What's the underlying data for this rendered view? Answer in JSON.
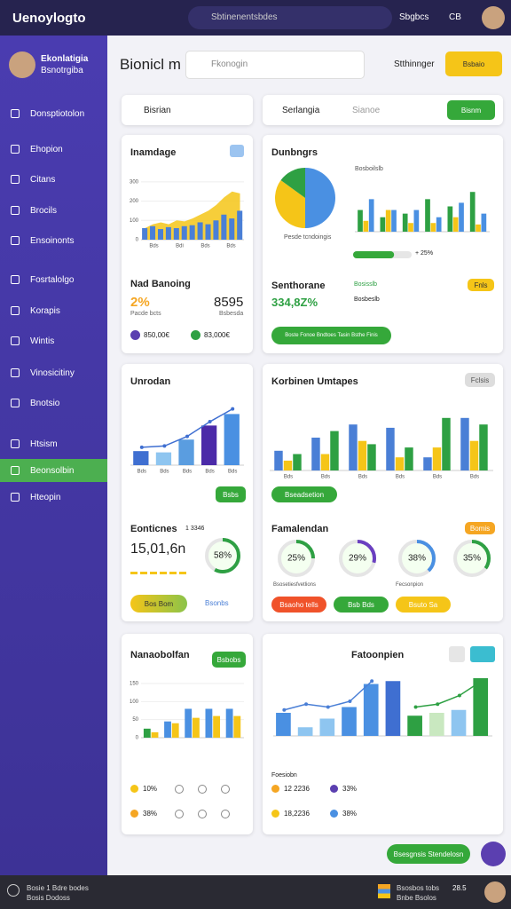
{
  "topbar": {
    "logo": "Uenoylogto",
    "search": "Sbtinenentsbdes",
    "user": "Sbgbcs",
    "code": "CB"
  },
  "sidebar": {
    "name": "Ekonlatigia",
    "role": "Bsnotrgiba",
    "menu": [
      "Donsptiotolon",
      "Ehopion",
      "Citans",
      "Brocils",
      "Ensoinonts",
      "Fosrtalolgo",
      "Korapis",
      "Wintis",
      "Vinosicitiny",
      "Bnotsio",
      "Htsism",
      "Beonsolbin",
      "Hteopin"
    ],
    "active": 11
  },
  "header": {
    "title": "Bionicl m",
    "search": "Fkonogin",
    "label": "Stthinnger",
    "button": "Bsbaio"
  },
  "filters": {
    "left": "Bisrian",
    "middle": "Serlangia",
    "placeholder": "Sianoe",
    "button": "Bisnm"
  },
  "cards": [
    {
      "title": "Inamdage",
      "chart": {
        "ylim": [
          0,
          350
        ],
        "yticks": [
          0,
          100,
          200,
          300
        ],
        "labels": [
          "Bds",
          "Bdi",
          "Bds",
          "Bds"
        ],
        "area": {
          "color": "#f5c518",
          "values": [
            60,
            80,
            90,
            80,
            100,
            95,
            110,
            130,
            150,
            180,
            220,
            250,
            240
          ]
        },
        "series": [
          {
            "color": "#4a7fd6",
            "values": [
              60,
              70,
              55,
              65,
              60,
              70,
              75,
              90,
              80,
              100,
              130,
              110,
              150
            ]
          }
        ]
      },
      "stat_title": "Nad Banoing",
      "stat_a": "2%",
      "stat_b": "8595",
      "sub_a": "Pacde bcts",
      "sub_b": "Bsbesda",
      "legend": [
        {
          "color": "#5b3fb0",
          "text": "850,00€"
        },
        {
          "color": "#2ea043",
          "text": "83,000€"
        }
      ]
    },
    {
      "title": "Dunbngrs",
      "pie": {
        "values": [
          50,
          35,
          15
        ],
        "colors": [
          "#4a90e2",
          "#f5c518",
          "#2ea043"
        ],
        "caption": "Pesde tcndoingis"
      },
      "chart": {
        "ylim": [
          0,
          70
        ],
        "legend_title": "Bosboilslb",
        "series": [
          {
            "color": "#2ea043",
            "values": [
              30,
              20,
              25,
              45,
              35,
              55
            ]
          },
          {
            "color": "#f5c518",
            "values": [
              15,
              30,
              12,
              12,
              20,
              10
            ]
          },
          {
            "color": "#4a90e2",
            "values": [
              45,
              30,
              30,
              20,
              40,
              25
            ]
          }
        ]
      },
      "progress": 70,
      "progress_label": "+ 25%",
      "stat_title": "Senthorane",
      "stat_big": "334,8Z%",
      "badge1": "Bosisslb",
      "badge2": "Bosbeslb",
      "tag": "Fnls",
      "button": "Boste Fonoe Bndtoes Tasin Bsthe Finis"
    },
    {
      "title": "Unrodan",
      "chart": {
        "ylim": [
          0,
          100
        ],
        "labels": [
          "Bds",
          "Bds",
          "Bds",
          "Bds",
          "Bds"
        ],
        "series": [
          {
            "colors": [
              "#3f6fd1",
              "#8ec5f0",
              "#5a9de0",
              "#4b2aa8",
              "#4a90e2"
            ],
            "values": [
              22,
              20,
              40,
              62,
              80
            ]
          }
        ],
        "lines": [
          {
            "color": "#3f6fd1",
            "values": [
              28,
              30,
              45,
              68,
              88
            ]
          }
        ]
      },
      "button": "Bsbs",
      "stat_title": "Eonticnes",
      "stat_sub": "1 3346",
      "stat_big": "15,01,6n",
      "donut": {
        "value": 58,
        "label": "58%",
        "color": "#2ea043"
      },
      "pill": "Bos Bom",
      "link": "Bsonbs"
    },
    {
      "title": "Korbinen Umtapes",
      "tag": "Fclsis",
      "chart": {
        "ylim": [
          0,
          100
        ],
        "labels": [
          "Bds",
          "Bds",
          "Bds",
          "Bds",
          "Bds",
          "Bds"
        ],
        "series": [
          {
            "color": "#4a7fd6",
            "values": [
              30,
              50,
              70,
              65,
              20,
              80
            ]
          },
          {
            "color": "#f5c518",
            "values": [
              15,
              25,
              45,
              20,
              35,
              45
            ]
          },
          {
            "color": "#2ea043",
            "values": [
              25,
              60,
              40,
              35,
              80,
              70
            ]
          }
        ]
      },
      "button": "Bseadsetion",
      "sec_title": "Famalendan",
      "sec_tag": "Bomis",
      "gauges": {
        "values": [
          25,
          29,
          38,
          35
        ],
        "value_labels": [
          "25%",
          "29%",
          "38%",
          "35%"
        ],
        "colors": [
          "#2ea043",
          "#6a3fc0",
          "#4a90e2",
          "#2ea043"
        ]
      },
      "caption": "Bsosetiesfvetlions",
      "caption2": "Fecsonpion",
      "buttons": [
        {
          "text": "Bsaoho tells",
          "color": "#f0522a"
        },
        {
          "text": "Bsb Bds",
          "color": "#35a83a"
        },
        {
          "text": "Bsuto Sa",
          "color": "#f5c518"
        }
      ]
    },
    {
      "title": "Nanaobolfan",
      "button": "Bsbobs",
      "chart": {
        "ylim": [
          0,
          150
        ],
        "yticks": [
          0,
          50,
          100,
          150
        ],
        "series": [
          {
            "colors": [
              "#2ea043",
              "#4a90e2",
              "#4a90e2",
              "#4a90e2",
              "#4a90e2"
            ],
            "values": [
              25,
              45,
              80,
              80,
              80
            ]
          },
          {
            "color": "#f5c518",
            "values": [
              15,
              40,
              55,
              60,
              60
            ]
          }
        ]
      },
      "rows": [
        {
          "color": "#f5c518",
          "text": "10%"
        },
        {
          "color": "#f5a623",
          "text": "38%"
        }
      ]
    },
    {
      "title": "Fatoonpien",
      "chart": {
        "ylim": [
          0,
          100
        ],
        "series": [
          {
            "colors": [
              "#4a90e2",
              "#8ec5f0",
              "#8ec5f0",
              "#4a90e2",
              "#4a90e2",
              "#3f6fd1",
              "#2ea043",
              "#c9e8c0",
              "#8ec5f0",
              "#2ea043"
            ],
            "values": [
              40,
              15,
              30,
              50,
              90,
              95,
              35,
              40,
              45,
              100
            ]
          }
        ],
        "lines": [
          {
            "color": "#4a7fd6",
            "values": [
              45,
              55,
              50,
              60,
              95,
              null,
              null,
              null,
              null,
              null
            ]
          },
          {
            "color": "#2ea043",
            "values": [
              null,
              null,
              null,
              null,
              null,
              null,
              50,
              55,
              70,
              95
            ]
          }
        ]
      },
      "caption": "Foesiobn",
      "rows": [
        {
          "color": "#f5a623",
          "text": "12 2236"
        },
        {
          "color": "#5b3fb0",
          "text": "33%"
        },
        {
          "color": "#f5c518",
          "text": "18,2236"
        },
        {
          "color": "#4a90e2",
          "text": "38%"
        }
      ]
    }
  ],
  "float_button": "Bsesgnsis Stendelosn",
  "footer": {
    "line1": "Bosie 1 Bdre bodes",
    "line2": "Bosis Dodoss",
    "right1": "Bsosbos tobs",
    "right2": "Bnbe Bsolos",
    "num": "28.5"
  }
}
